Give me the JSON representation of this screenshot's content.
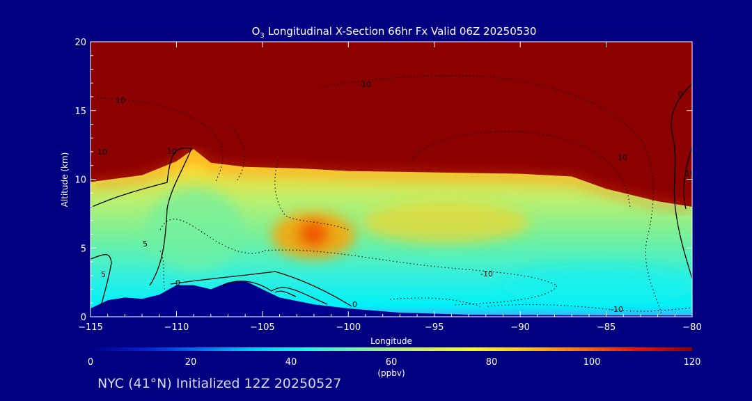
{
  "chart_data": {
    "type": "heatmap",
    "title_prefix": "O",
    "title_subscript": "3",
    "title_rest": " Longitudinal X-Section 66hr  Fx Valid 06Z 20250530",
    "xlabel": "Longitude",
    "ylabel": "Altitude (km)",
    "xlim": [
      -115,
      -80
    ],
    "ylim": [
      0,
      20
    ],
    "x_ticks": [
      -115,
      -110,
      -105,
      -100,
      -95,
      -90,
      -85,
      -80
    ],
    "x_tick_labels": [
      "−115",
      "−110",
      "−105",
      "−100",
      "−95",
      "−90",
      "−85",
      "−80"
    ],
    "y_ticks": [
      0,
      5,
      10,
      15,
      20
    ],
    "y_tick_labels": [
      "0",
      "5",
      "10",
      "15",
      "20"
    ],
    "grid": false,
    "colorbar": {
      "min": 0,
      "max": 120,
      "ticks": [
        0,
        20,
        40,
        60,
        80,
        100,
        120
      ],
      "tick_labels": [
        "0",
        "20",
        "40",
        "60",
        "80",
        "100",
        "120"
      ],
      "unit": "(ppbv)",
      "colors": [
        "#00008c",
        "#0020d0",
        "#0070f0",
        "#00d0f8",
        "#20f8e0",
        "#80f0a0",
        "#ccf060",
        "#f8f820",
        "#ffc010",
        "#ff7000",
        "#f01000",
        "#8c0000"
      ]
    },
    "terrain_top_km": [
      {
        "lon": -115.0,
        "z": 0.6
      },
      {
        "lon": -114.0,
        "z": 1.2
      },
      {
        "lon": -113.0,
        "z": 1.4
      },
      {
        "lon": -112.0,
        "z": 1.3
      },
      {
        "lon": -111.0,
        "z": 1.6
      },
      {
        "lon": -110.0,
        "z": 2.3
      },
      {
        "lon": -109.0,
        "z": 2.3
      },
      {
        "lon": -108.0,
        "z": 2.0
      },
      {
        "lon": -107.0,
        "z": 2.5
      },
      {
        "lon": -106.0,
        "z": 2.6
      },
      {
        "lon": -105.0,
        "z": 2.0
      },
      {
        "lon": -104.0,
        "z": 1.4
      },
      {
        "lon": -102.0,
        "z": 0.9
      },
      {
        "lon": -100.0,
        "z": 0.6
      },
      {
        "lon": -97.0,
        "z": 0.3
      },
      {
        "lon": -93.0,
        "z": 0.15
      },
      {
        "lon": -85.0,
        "z": 0.1
      },
      {
        "lon": -80.0,
        "z": 0.1
      }
    ],
    "tropopause_km": [
      {
        "lon": -115.0,
        "z": 9.8
      },
      {
        "lon": -112.0,
        "z": 10.3
      },
      {
        "lon": -110.0,
        "z": 11.3
      },
      {
        "lon": -109.0,
        "z": 12.2
      },
      {
        "lon": -108.0,
        "z": 11.2
      },
      {
        "lon": -106.0,
        "z": 10.9
      },
      {
        "lon": -103.0,
        "z": 10.8
      },
      {
        "lon": -100.0,
        "z": 10.6
      },
      {
        "lon": -95.0,
        "z": 10.5
      },
      {
        "lon": -90.0,
        "z": 10.4
      },
      {
        "lon": -87.0,
        "z": 10.2
      },
      {
        "lon": -85.0,
        "z": 9.3
      },
      {
        "lon": -82.0,
        "z": 8.4
      },
      {
        "lon": -80.0,
        "z": 8.0
      }
    ],
    "max_region": {
      "lon": -102.0,
      "z": 5.8
    },
    "contour_labels": [
      "10",
      "10",
      "5",
      "10",
      "-10",
      "0",
      "10",
      "5",
      "0",
      "-10",
      "-10",
      "10",
      "0"
    ]
  },
  "footer": "NYC (41°N) Initialized 12Z 20250527"
}
